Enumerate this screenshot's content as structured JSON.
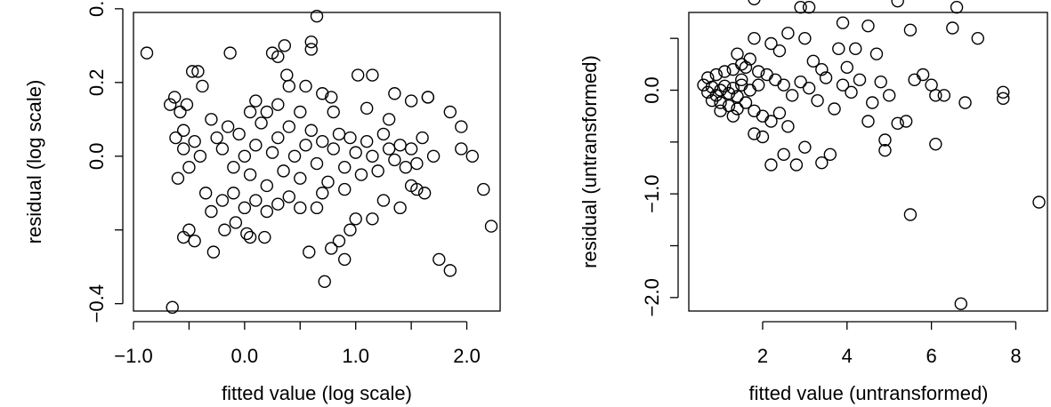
{
  "chart_data": [
    {
      "type": "scatter",
      "xlabel": "fitted value (log scale)",
      "ylabel": "residual (log scale)",
      "xlim": [
        -1.0,
        2.3
      ],
      "ylim": [
        -0.42,
        0.39
      ],
      "x_ticks": [
        {
          "value": -1.0,
          "label": "−1.0"
        },
        {
          "value": -0.5,
          "label": ""
        },
        {
          "value": 0.0,
          "label": "0.0"
        },
        {
          "value": 0.5,
          "label": ""
        },
        {
          "value": 1.0,
          "label": "1.0"
        },
        {
          "value": 1.5,
          "label": ""
        },
        {
          "value": 2.0,
          "label": "2.0"
        }
      ],
      "y_ticks": [
        {
          "value": -0.4,
          "label": "−0.4"
        },
        {
          "value": -0.2,
          "label": ""
        },
        {
          "value": 0.0,
          "label": "0.0"
        },
        {
          "value": 0.2,
          "label": "0.2"
        },
        {
          "value": 0.4,
          "label": "0."
        }
      ],
      "grid": false,
      "points": [
        [
          -0.88,
          0.28
        ],
        [
          -0.65,
          -0.41
        ],
        [
          -0.67,
          0.14
        ],
        [
          -0.63,
          0.16
        ],
        [
          -0.58,
          0.12
        ],
        [
          -0.62,
          0.05
        ],
        [
          -0.55,
          0.07
        ],
        [
          -0.52,
          0.14
        ],
        [
          -0.47,
          0.23
        ],
        [
          -0.42,
          0.23
        ],
        [
          -0.13,
          0.28
        ],
        [
          -0.38,
          0.19
        ],
        [
          -0.55,
          -0.22
        ],
        [
          -0.5,
          -0.2
        ],
        [
          -0.45,
          -0.23
        ],
        [
          -0.28,
          -0.26
        ],
        [
          -0.18,
          -0.2
        ],
        [
          -0.08,
          -0.18
        ],
        [
          0.02,
          -0.21
        ],
        [
          0.05,
          -0.22
        ],
        [
          0.18,
          -0.22
        ],
        [
          0.25,
          0.28
        ],
        [
          0.3,
          0.27
        ],
        [
          0.36,
          0.3
        ],
        [
          0.38,
          0.22
        ],
        [
          0.4,
          0.19
        ],
        [
          0.6,
          0.31
        ],
        [
          0.6,
          0.29
        ],
        [
          0.65,
          0.38
        ],
        [
          0.55,
          0.19
        ],
        [
          0.7,
          0.17
        ],
        [
          0.78,
          0.16
        ],
        [
          1.02,
          0.22
        ],
        [
          1.15,
          0.22
        ],
        [
          1.35,
          0.17
        ],
        [
          1.5,
          0.15
        ],
        [
          1.65,
          0.16
        ],
        [
          1.65,
          0.16
        ],
        [
          1.85,
          0.12
        ],
        [
          1.95,
          0.08
        ],
        [
          1.95,
          0.02
        ],
        [
          2.05,
          0.0
        ],
        [
          2.15,
          -0.09
        ],
        [
          2.22,
          -0.19
        ],
        [
          1.85,
          -0.31
        ],
        [
          1.75,
          -0.28
        ],
        [
          1.62,
          -0.1
        ],
        [
          1.55,
          -0.09
        ],
        [
          1.5,
          -0.08
        ],
        [
          1.4,
          -0.14
        ],
        [
          1.25,
          -0.12
        ],
        [
          1.15,
          -0.17
        ],
        [
          1.0,
          -0.17
        ],
        [
          0.95,
          -0.2
        ],
        [
          0.85,
          -0.23
        ],
        [
          0.78,
          -0.25
        ],
        [
          0.72,
          -0.34
        ],
        [
          0.58,
          -0.26
        ],
        [
          0.65,
          -0.14
        ],
        [
          0.9,
          -0.28
        ],
        [
          -0.3,
          0.1
        ],
        [
          -0.25,
          0.05
        ],
        [
          -0.2,
          0.02
        ],
        [
          -0.15,
          0.08
        ],
        [
          -0.1,
          -0.03
        ],
        [
          -0.05,
          0.06
        ],
        [
          0.0,
          0.0
        ],
        [
          0.05,
          -0.05
        ],
        [
          0.1,
          0.03
        ],
        [
          0.15,
          0.09
        ],
        [
          0.2,
          -0.08
        ],
        [
          0.25,
          0.01
        ],
        [
          0.3,
          0.05
        ],
        [
          0.35,
          -0.04
        ],
        [
          0.4,
          0.08
        ],
        [
          0.45,
          0.0
        ],
        [
          0.5,
          -0.06
        ],
        [
          0.55,
          0.03
        ],
        [
          0.6,
          0.07
        ],
        [
          0.65,
          -0.02
        ],
        [
          0.7,
          0.04
        ],
        [
          0.75,
          -0.07
        ],
        [
          0.8,
          0.02
        ],
        [
          0.85,
          0.06
        ],
        [
          0.9,
          -0.03
        ],
        [
          0.95,
          0.05
        ],
        [
          1.0,
          0.01
        ],
        [
          1.05,
          -0.05
        ],
        [
          1.1,
          0.04
        ],
        [
          1.15,
          0.0
        ],
        [
          1.2,
          -0.04
        ],
        [
          1.25,
          0.06
        ],
        [
          1.3,
          0.02
        ],
        [
          1.35,
          -0.01
        ],
        [
          1.4,
          0.03
        ],
        [
          1.45,
          -0.03
        ],
        [
          1.5,
          0.02
        ],
        [
          1.55,
          -0.02
        ],
        [
          1.6,
          0.05
        ],
        [
          1.7,
          0.0
        ],
        [
          -0.35,
          -0.1
        ],
        [
          -0.3,
          -0.15
        ],
        [
          -0.2,
          -0.12
        ],
        [
          -0.1,
          -0.1
        ],
        [
          0.0,
          -0.14
        ],
        [
          0.1,
          -0.12
        ],
        [
          0.2,
          -0.15
        ],
        [
          0.3,
          -0.13
        ],
        [
          0.4,
          -0.11
        ],
        [
          0.5,
          -0.14
        ],
        [
          -0.4,
          0.0
        ],
        [
          -0.45,
          0.04
        ],
        [
          -0.5,
          -0.03
        ],
        [
          -0.55,
          0.02
        ],
        [
          -0.6,
          -0.06
        ],
        [
          0.05,
          0.12
        ],
        [
          0.1,
          0.15
        ],
        [
          0.2,
          0.12
        ],
        [
          0.3,
          0.14
        ],
        [
          0.5,
          0.12
        ],
        [
          0.8,
          0.12
        ],
        [
          1.1,
          0.13
        ],
        [
          1.3,
          0.1
        ],
        [
          0.7,
          -0.1
        ],
        [
          0.9,
          -0.09
        ]
      ]
    },
    {
      "type": "scatter",
      "xlabel": "fitted value (untransformed)",
      "ylabel": "residual (untransformed)",
      "xlim": [
        0.25,
        8.75
      ],
      "ylim": [
        -2.13,
        0.75
      ],
      "x_ticks": [
        {
          "value": 2,
          "label": "2"
        },
        {
          "value": 4,
          "label": "4"
        },
        {
          "value": 6,
          "label": "6"
        },
        {
          "value": 8,
          "label": "8"
        }
      ],
      "y_ticks": [
        {
          "value": -2.0,
          "label": "−2.0"
        },
        {
          "value": -1.5,
          "label": ""
        },
        {
          "value": -1.0,
          "label": "−1.0"
        },
        {
          "value": -0.5,
          "label": ""
        },
        {
          "value": 0.0,
          "label": "0.0"
        },
        {
          "value": 0.5,
          "label": ""
        }
      ],
      "grid": false,
      "points": [
        [
          1.8,
          0.88
        ],
        [
          3.1,
          0.8
        ],
        [
          2.9,
          0.8
        ],
        [
          5.2,
          0.86
        ],
        [
          6.6,
          0.8
        ],
        [
          3.9,
          0.65
        ],
        [
          4.5,
          0.62
        ],
        [
          5.5,
          0.58
        ],
        [
          6.5,
          0.6
        ],
        [
          7.1,
          0.5
        ],
        [
          1.8,
          0.5
        ],
        [
          2.6,
          0.55
        ],
        [
          3.0,
          0.5
        ],
        [
          3.8,
          0.4
        ],
        [
          4.2,
          0.4
        ],
        [
          4.7,
          0.35
        ],
        [
          5.8,
          0.15
        ],
        [
          6.0,
          0.05
        ],
        [
          6.1,
          -0.05
        ],
        [
          6.3,
          -0.05
        ],
        [
          6.8,
          -0.12
        ],
        [
          7.7,
          -0.02
        ],
        [
          7.7,
          -0.08
        ],
        [
          8.55,
          -1.08
        ],
        [
          6.7,
          -2.06
        ],
        [
          5.5,
          -1.2
        ],
        [
          6.1,
          -0.52
        ],
        [
          5.4,
          -0.3
        ],
        [
          5.2,
          -0.32
        ],
        [
          4.9,
          -0.58
        ],
        [
          4.9,
          -0.48
        ],
        [
          4.5,
          -0.3
        ],
        [
          3.6,
          -0.62
        ],
        [
          3.4,
          -0.7
        ],
        [
          3.0,
          -0.55
        ],
        [
          2.8,
          -0.72
        ],
        [
          2.5,
          -0.62
        ],
        [
          2.2,
          -0.72
        ],
        [
          2.0,
          -0.45
        ],
        [
          1.8,
          -0.42
        ],
        [
          0.6,
          0.05
        ],
        [
          0.7,
          -0.02
        ],
        [
          0.8,
          0.03
        ],
        [
          0.9,
          -0.05
        ],
        [
          1.0,
          0.0
        ],
        [
          1.1,
          0.04
        ],
        [
          1.2,
          -0.03
        ],
        [
          1.3,
          0.02
        ],
        [
          1.4,
          -0.06
        ],
        [
          1.5,
          0.05
        ],
        [
          0.7,
          0.12
        ],
        [
          0.9,
          0.15
        ],
        [
          1.1,
          0.18
        ],
        [
          1.3,
          0.2
        ],
        [
          1.5,
          0.25
        ],
        [
          1.7,
          0.3
        ],
        [
          1.4,
          0.35
        ],
        [
          1.6,
          0.22
        ],
        [
          1.9,
          0.18
        ],
        [
          2.1,
          0.15
        ],
        [
          0.8,
          -0.1
        ],
        [
          1.0,
          -0.12
        ],
        [
          1.2,
          -0.15
        ],
        [
          1.4,
          -0.18
        ],
        [
          1.6,
          -0.12
        ],
        [
          1.8,
          -0.2
        ],
        [
          2.0,
          -0.25
        ],
        [
          2.2,
          -0.3
        ],
        [
          2.4,
          -0.22
        ],
        [
          2.6,
          -0.35
        ],
        [
          2.3,
          0.1
        ],
        [
          2.5,
          0.05
        ],
        [
          2.7,
          -0.05
        ],
        [
          2.9,
          0.08
        ],
        [
          3.1,
          0.02
        ],
        [
          3.3,
          -0.1
        ],
        [
          3.5,
          0.12
        ],
        [
          3.7,
          -0.18
        ],
        [
          3.9,
          0.05
        ],
        [
          4.1,
          -0.02
        ],
        [
          4.3,
          0.1
        ],
        [
          4.6,
          -0.12
        ],
        [
          4.8,
          0.08
        ],
        [
          5.0,
          -0.05
        ],
        [
          5.6,
          0.1
        ],
        [
          2.2,
          0.45
        ],
        [
          2.4,
          0.38
        ],
        [
          3.2,
          0.28
        ],
        [
          3.4,
          0.2
        ],
        [
          4.0,
          0.22
        ],
        [
          1.0,
          -0.2
        ],
        [
          1.3,
          -0.25
        ],
        [
          1.5,
          0.1
        ],
        [
          1.7,
          0.0
        ],
        [
          1.9,
          0.05
        ]
      ]
    }
  ]
}
